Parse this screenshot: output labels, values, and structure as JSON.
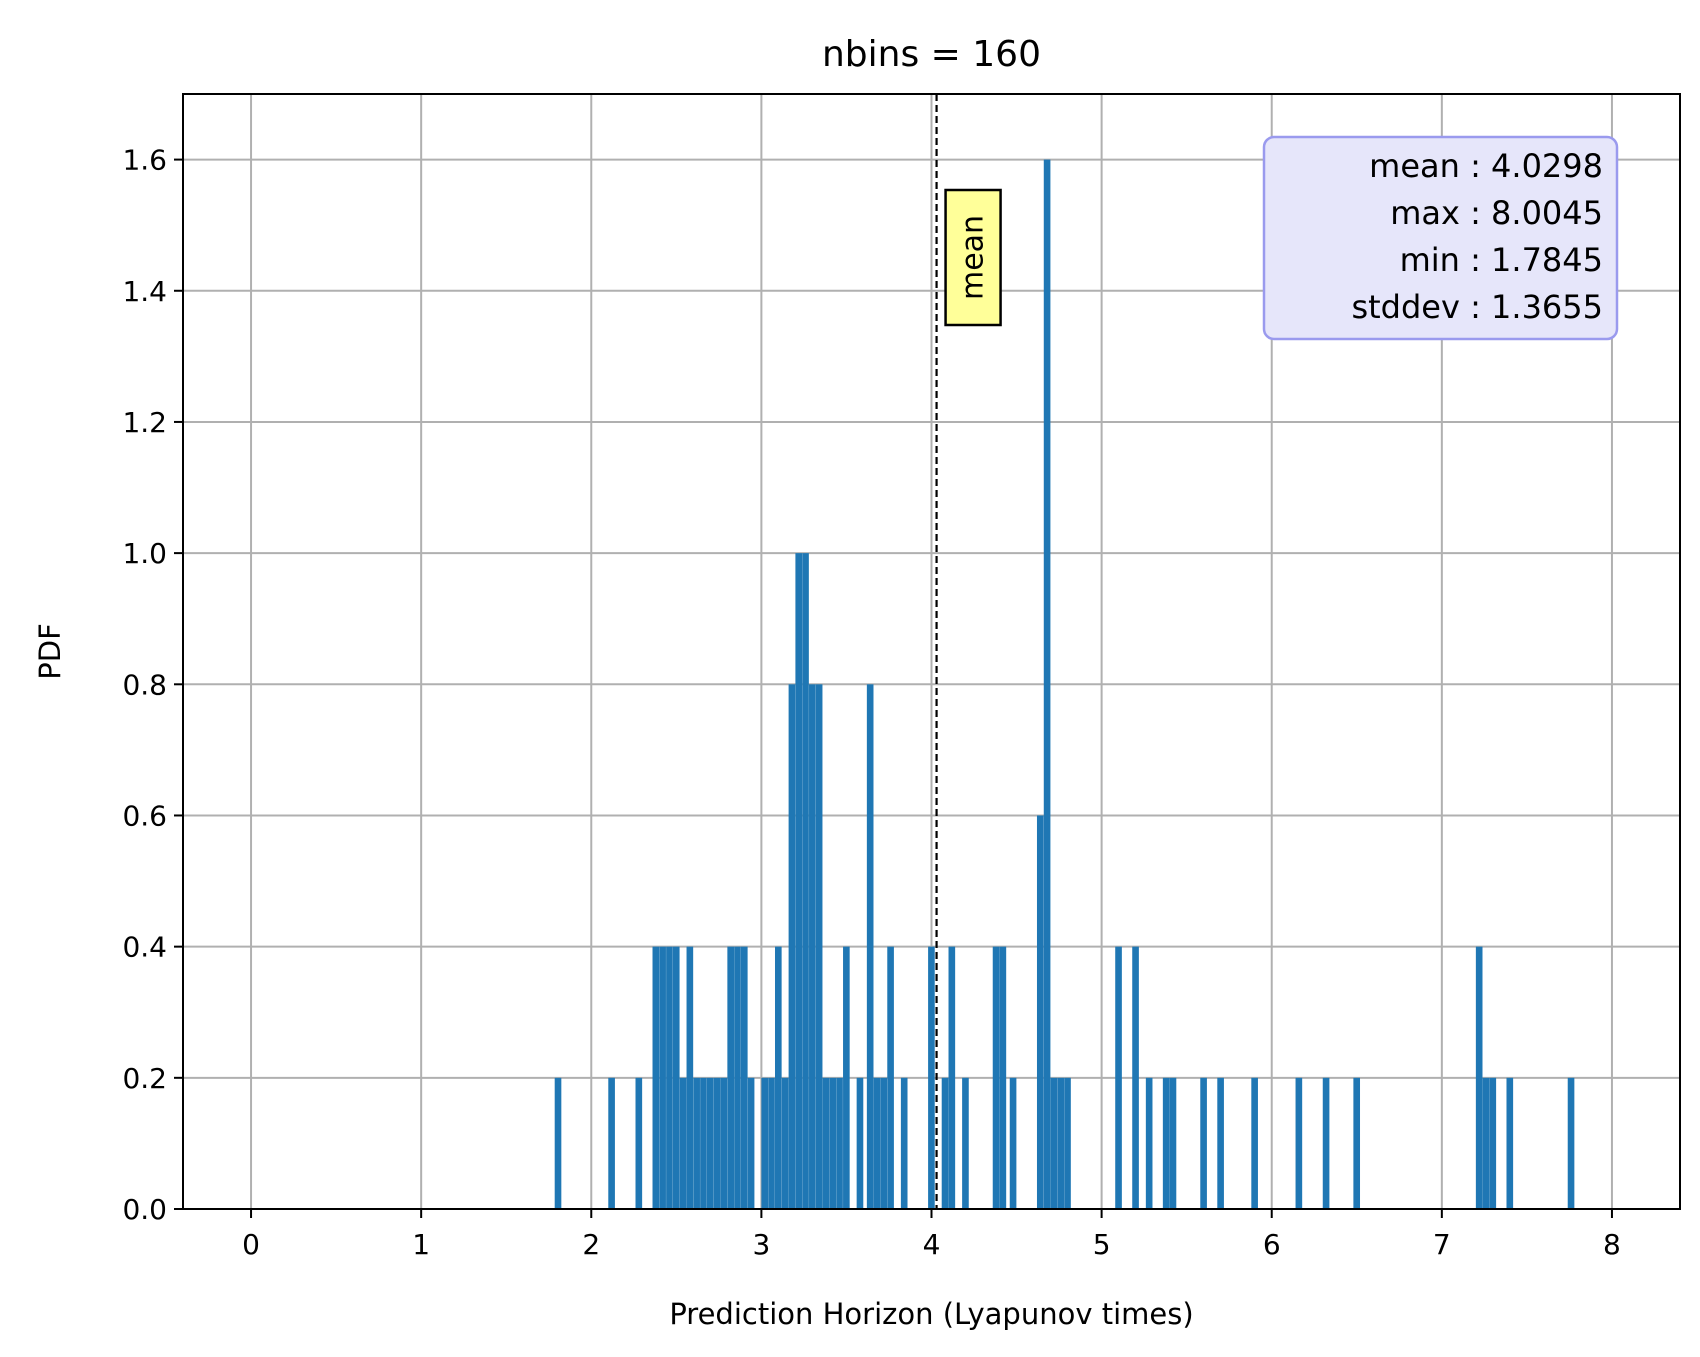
{
  "chart_data": {
    "type": "bar",
    "title": "nbins = 160",
    "xlabel": "Prediction Horizon (Lyapunov times)",
    "ylabel": "PDF",
    "xlim": [
      -0.4,
      8.4
    ],
    "ylim": [
      0,
      1.7
    ],
    "xticks": [
      "0",
      "1",
      "2",
      "3",
      "4",
      "5",
      "6",
      "7",
      "8"
    ],
    "yticks": [
      "0.0",
      "0.2",
      "0.4",
      "0.6",
      "0.8",
      "1.0",
      "1.2",
      "1.4",
      "1.6"
    ],
    "grid": true,
    "bin_width": 0.039,
    "bar_color": "#1f77b4",
    "bins": [
      {
        "x": 1.785,
        "y": 0.2
      },
      {
        "x": 2.1,
        "y": 0.2
      },
      {
        "x": 2.26,
        "y": 0.2
      },
      {
        "x": 2.36,
        "y": 0.4
      },
      {
        "x": 2.4,
        "y": 0.4
      },
      {
        "x": 2.44,
        "y": 0.4
      },
      {
        "x": 2.48,
        "y": 0.4
      },
      {
        "x": 2.52,
        "y": 0.2
      },
      {
        "x": 2.56,
        "y": 0.4
      },
      {
        "x": 2.6,
        "y": 0.2
      },
      {
        "x": 2.64,
        "y": 0.2
      },
      {
        "x": 2.68,
        "y": 0.2
      },
      {
        "x": 2.72,
        "y": 0.2
      },
      {
        "x": 2.76,
        "y": 0.2
      },
      {
        "x": 2.8,
        "y": 0.4
      },
      {
        "x": 2.84,
        "y": 0.4
      },
      {
        "x": 2.88,
        "y": 0.4
      },
      {
        "x": 2.92,
        "y": 0.2
      },
      {
        "x": 3.0,
        "y": 0.2
      },
      {
        "x": 3.04,
        "y": 0.2
      },
      {
        "x": 3.08,
        "y": 0.4
      },
      {
        "x": 3.12,
        "y": 0.2
      },
      {
        "x": 3.16,
        "y": 0.8
      },
      {
        "x": 3.2,
        "y": 1.0
      },
      {
        "x": 3.24,
        "y": 1.0
      },
      {
        "x": 3.28,
        "y": 0.8
      },
      {
        "x": 3.32,
        "y": 0.8
      },
      {
        "x": 3.36,
        "y": 0.2
      },
      {
        "x": 3.4,
        "y": 0.2
      },
      {
        "x": 3.44,
        "y": 0.2
      },
      {
        "x": 3.48,
        "y": 0.4
      },
      {
        "x": 3.56,
        "y": 0.2
      },
      {
        "x": 3.62,
        "y": 0.8
      },
      {
        "x": 3.66,
        "y": 0.2
      },
      {
        "x": 3.7,
        "y": 0.2
      },
      {
        "x": 3.74,
        "y": 0.4
      },
      {
        "x": 3.82,
        "y": 0.2
      },
      {
        "x": 3.98,
        "y": 0.4
      },
      {
        "x": 4.06,
        "y": 0.2
      },
      {
        "x": 4.1,
        "y": 0.4
      },
      {
        "x": 4.18,
        "y": 0.2
      },
      {
        "x": 4.36,
        "y": 0.4
      },
      {
        "x": 4.4,
        "y": 0.4
      },
      {
        "x": 4.46,
        "y": 0.2
      },
      {
        "x": 4.62,
        "y": 0.6
      },
      {
        "x": 4.66,
        "y": 1.6
      },
      {
        "x": 4.7,
        "y": 0.2
      },
      {
        "x": 4.74,
        "y": 0.2
      },
      {
        "x": 4.78,
        "y": 0.2
      },
      {
        "x": 5.08,
        "y": 0.4
      },
      {
        "x": 5.18,
        "y": 0.4
      },
      {
        "x": 5.26,
        "y": 0.2
      },
      {
        "x": 5.36,
        "y": 0.2
      },
      {
        "x": 5.4,
        "y": 0.2
      },
      {
        "x": 5.58,
        "y": 0.2
      },
      {
        "x": 5.68,
        "y": 0.2
      },
      {
        "x": 5.88,
        "y": 0.2
      },
      {
        "x": 6.14,
        "y": 0.2
      },
      {
        "x": 6.3,
        "y": 0.2
      },
      {
        "x": 6.48,
        "y": 0.2
      },
      {
        "x": 7.2,
        "y": 0.4
      },
      {
        "x": 7.24,
        "y": 0.2
      },
      {
        "x": 7.28,
        "y": 0.2
      },
      {
        "x": 7.38,
        "y": 0.2
      },
      {
        "x": 7.74,
        "y": 0.2
      }
    ],
    "mean_line": {
      "x": 4.0298,
      "label": "mean"
    },
    "stats_box": {
      "lines": [
        "mean : 4.0298",
        "max : 8.0045",
        "min : 1.7845",
        "stddev : 1.3655"
      ]
    }
  }
}
